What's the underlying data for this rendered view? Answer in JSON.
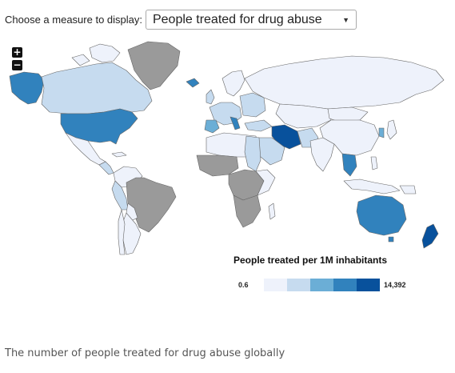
{
  "control": {
    "label": "Choose a measure to display:",
    "selected": "People treated for drug abuse",
    "zoom_in": "+",
    "zoom_out": "−"
  },
  "legend": {
    "title": "People treated per 1M inhabitants",
    "min": "0.6",
    "max": "14,392",
    "scale_colors": [
      "#eef2fb",
      "#c6dbef",
      "#6baed6",
      "#3182bd",
      "#08519c"
    ],
    "no_data_color": "#9a9a9a"
  },
  "caption": "The number of people treated for drug abuse globally"
}
